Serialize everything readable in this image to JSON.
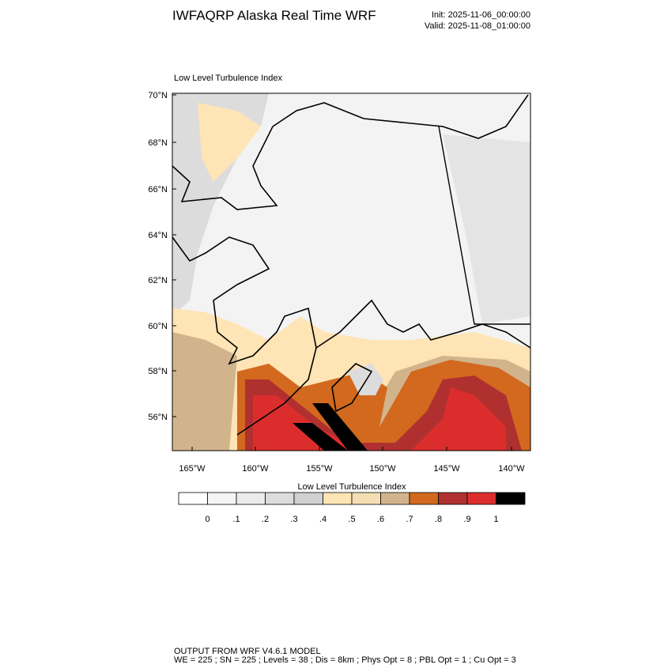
{
  "header": {
    "title": "IWFAQRP Alaska Real Time WRF",
    "init": "Init: 2025-11-06_00:00:00",
    "valid": "Valid: 2025-11-08_01:00:00"
  },
  "map": {
    "label": "Low Level Turbulence Index",
    "lat_labels": [
      "70°N",
      "68°N",
      "66°N",
      "64°N",
      "62°N",
      "60°N",
      "58°N",
      "56°N"
    ],
    "lon_labels": [
      "165°W",
      "160°W",
      "155°W",
      "150°W",
      "145°W",
      "140°W"
    ]
  },
  "colorbar": {
    "title": "Low Level Turbulence Index",
    "colors": [
      "#ffffff",
      "#f5f5f5",
      "#ebebeb",
      "#dcdcdc",
      "#d0d0d0",
      "#ffe4b5",
      "#f5deb3",
      "#d2b48c",
      "#d2691e",
      "#b03030",
      "#dc2d2d",
      "#000000"
    ],
    "labels": [
      "0",
      ".1",
      ".2",
      ".3",
      ".4",
      ".5",
      ".6",
      ".7",
      ".8",
      ".9",
      "1"
    ]
  },
  "footer": {
    "line1": "OUTPUT FROM WRF V4.6.1 MODEL",
    "line2": "WE = 225 ; SN = 225 ; Levels = 38 ; Dis = 8km ; Phys Opt = 8 ; PBL Opt = 1 ; Cu Opt = 3"
  }
}
